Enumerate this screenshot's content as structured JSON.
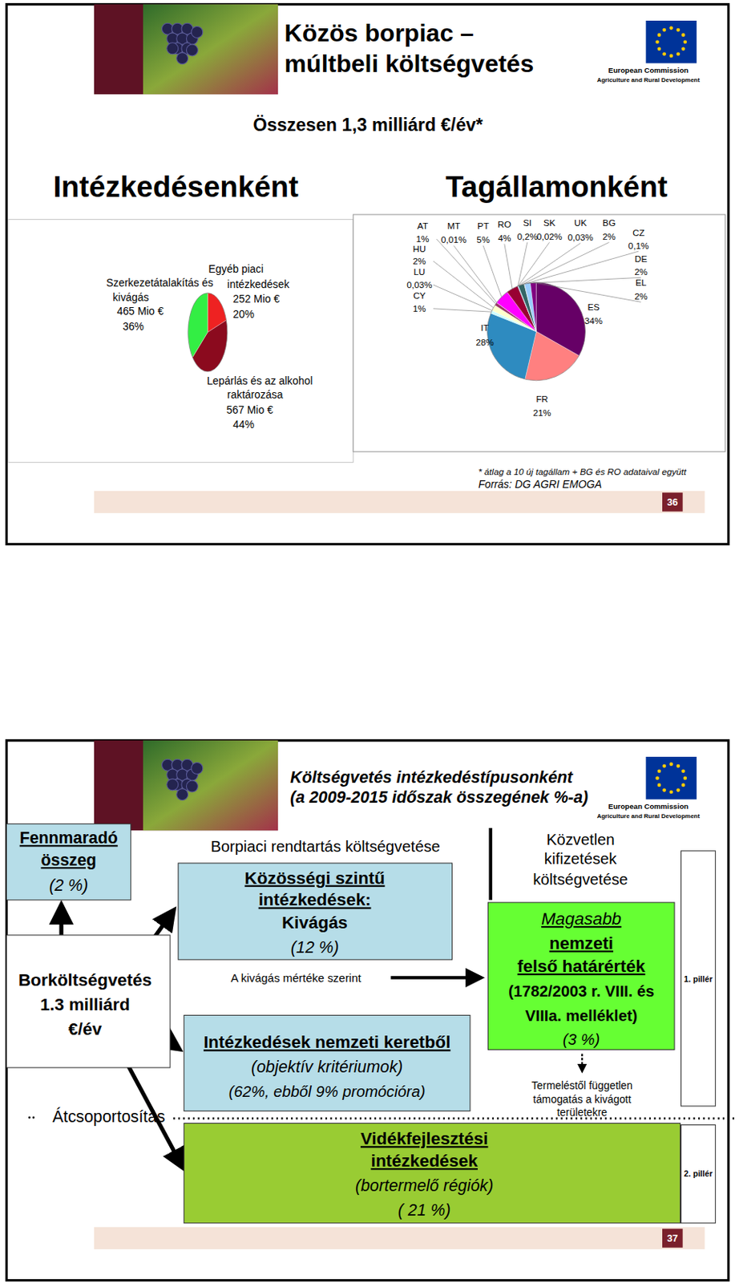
{
  "header": {
    "org_lines": [
      "European Commission",
      "Agriculture and Rural Development"
    ]
  },
  "slides": [
    {
      "page": "36",
      "title": [
        "Közös borpiac –",
        "múltbeli költségvetés"
      ],
      "subtitle": "Összesen 1,3 milliárd €/év*",
      "footnote": "* átlag a 10 új tagállam + BG és RO adataival együtt",
      "source": "Forrás: DG AGRI EMOGA"
    },
    {
      "page": "37",
      "title": [
        "Költségvetés intézkedéstípusonként",
        "(a 2009-2015 időszak összegének %-a)"
      ],
      "nodes": [
        {
          "lines": [
            "Fennmaradó",
            "összeg",
            "(2 %)"
          ]
        },
        {
          "lines": [
            "Borköltségvetés",
            "1.3 milliárd",
            "€/év"
          ]
        },
        {
          "lines": [
            "Átcsoportosítás"
          ]
        },
        {
          "lines": [
            "Borpiaci rendtartás költségvetése"
          ]
        },
        {
          "lines": [
            "Közösségi szintű",
            "intézkedések:",
            "Kivágás",
            "(12 %)"
          ]
        },
        {
          "lines": [
            "A kivágás mértéke szerint"
          ]
        },
        {
          "lines": [
            "Intézkedések nemzeti keretből",
            "(objektív kritériumok)",
            "(62%, ebből 9% promócióra)"
          ]
        },
        {
          "lines": [
            "Vidékfejlesztési",
            "intézkedések",
            "(bortermelő régiók)",
            "( 21 %)"
          ]
        },
        {
          "lines": [
            "Közvetlen",
            "kifizetések",
            "költségvetése"
          ]
        },
        {
          "lines": [
            "Magasabb",
            "nemzeti",
            "felső határérték",
            "(1782/2003 r. VIII. és",
            "VIIIa. melléklet)",
            "(3 %)"
          ]
        },
        {
          "lines": [
            "Termeléstől független",
            "támogatás a kivágott",
            "területekre"
          ]
        },
        {
          "lines": [
            "1. pillér"
          ]
        },
        {
          "lines": [
            "2. pillér"
          ]
        }
      ]
    }
  ],
  "chart_data": [
    {
      "type": "pie",
      "title": "Intézkedésenként",
      "categories": [
        "Egyéb piaci intézkedések",
        "Lepárlás és az alkohol raktározása",
        "Szerkezetátalakítás és kivágás"
      ],
      "values": [
        20,
        44,
        36
      ],
      "value_labels": [
        "20%",
        "44%",
        "36%"
      ],
      "amount_labels": [
        "252 Mio €",
        "567 Mio €",
        "465 Mio €"
      ],
      "colors": [
        "#ee2222",
        "#8b0a1e",
        "#33ee44"
      ],
      "data_labels": true
    },
    {
      "type": "pie",
      "title": "Tagállamonként",
      "categories": [
        "ES",
        "FR",
        "IT",
        "CY",
        "LU",
        "HU",
        "AT",
        "MT",
        "PT",
        "RO",
        "SI",
        "SK",
        "UK",
        "BG",
        "CZ",
        "DE",
        "EL"
      ],
      "values": [
        34,
        21,
        28,
        1,
        0.03,
        2,
        1,
        0.01,
        5,
        4,
        0.2,
        0.02,
        0.03,
        2,
        0.1,
        2,
        2
      ],
      "value_labels": [
        "34%",
        "21%",
        "28%",
        "1%",
        "0,03%",
        "2%",
        "1%",
        "0,01%",
        "5%",
        "4%",
        "0,2%",
        "0,02%",
        "0,03%",
        "2%",
        "0,1%",
        "2%",
        "2%"
      ],
      "colors": [
        "#660066",
        "#ff8080",
        "#2e8bc0",
        "#ccffff",
        "#0066cc",
        "#ffffcc",
        "#993366",
        "#000080",
        "#ff00ff",
        "#990033",
        "#00ccff",
        "#ccccff",
        "#cc99ff",
        "#336666",
        "#ffcc99",
        "#99ccff",
        "#800080"
      ],
      "data_labels": true
    }
  ]
}
